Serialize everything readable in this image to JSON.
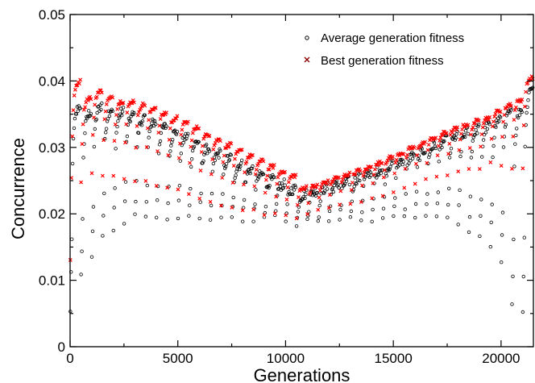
{
  "chart_data": {
    "type": "scatter",
    "title": "",
    "xlabel": "Generations",
    "ylabel": "Concurrence",
    "xlim": [
      0,
      21500
    ],
    "ylim": [
      0,
      0.05
    ],
    "x_ticks": [
      0,
      5000,
      10000,
      15000,
      20000
    ],
    "x_tick_labels": [
      "0",
      "5000",
      "10000",
      "15000",
      "20000"
    ],
    "y_ticks": [
      0,
      0.01,
      0.02,
      0.03,
      0.04,
      0.05
    ],
    "y_tick_labels": [
      "0",
      "0.01",
      "0.02",
      "0.03",
      "0.04",
      "0.05"
    ],
    "grid": false,
    "legend_position": "top-right",
    "restart_period": 500,
    "series": [
      {
        "name": "Average generation fitness",
        "marker": "open-circle",
        "color": "#000000",
        "segment_start_x": [
          0,
          500,
          1000,
          1500,
          2000,
          2500,
          3000,
          3500,
          4000,
          4500,
          5000,
          5500,
          6000,
          6500,
          7000,
          7500,
          8000,
          8500,
          9000,
          9500,
          10000,
          10500,
          11000,
          11500,
          12000,
          12500,
          13000,
          13500,
          14000,
          14500,
          15000,
          15500,
          16000,
          16500,
          17000,
          17500,
          18000,
          18500,
          19000,
          19500,
          20000,
          20500,
          21000
        ],
        "segment_min": [
          0.005,
          0.01,
          0.013,
          0.016,
          0.017,
          0.0185,
          0.019,
          0.019,
          0.019,
          0.019,
          0.019,
          0.019,
          0.019,
          0.0188,
          0.0188,
          0.0188,
          0.0188,
          0.0188,
          0.0188,
          0.0188,
          0.0188,
          0.018,
          0.0185,
          0.0185,
          0.0188,
          0.0188,
          0.0188,
          0.0188,
          0.0188,
          0.0188,
          0.0188,
          0.0188,
          0.0188,
          0.0188,
          0.0188,
          0.0185,
          0.018,
          0.0165,
          0.016,
          0.0145,
          0.0125,
          0.0055,
          0.0045
        ],
        "segment_max": [
          0.0365,
          0.0355,
          0.0365,
          0.036,
          0.0355,
          0.035,
          0.0345,
          0.034,
          0.0333,
          0.0325,
          0.0318,
          0.031,
          0.03,
          0.0292,
          0.0285,
          0.0275,
          0.0268,
          0.026,
          0.0252,
          0.0245,
          0.0238,
          0.023,
          0.0235,
          0.024,
          0.0245,
          0.025,
          0.0255,
          0.0262,
          0.0268,
          0.0275,
          0.0282,
          0.029,
          0.0297,
          0.0305,
          0.0312,
          0.0318,
          0.0325,
          0.033,
          0.0335,
          0.0345,
          0.0355,
          0.036,
          0.0395
        ]
      },
      {
        "name": "Best generation fitness",
        "marker": "x",
        "color": "#ff0000",
        "segment_start_x": [
          0,
          500,
          1000,
          1500,
          2000,
          2500,
          3000,
          3500,
          4000,
          4500,
          5000,
          5500,
          6000,
          6500,
          7000,
          7500,
          8000,
          8500,
          9000,
          9500,
          10000,
          10500,
          11000,
          11500,
          12000,
          12500,
          13000,
          13500,
          14000,
          14500,
          15000,
          15500,
          16000,
          16500,
          17000,
          17500,
          18000,
          18500,
          19000,
          19500,
          20000,
          20500,
          21000
        ],
        "segment_min": [
          0.013,
          0.025,
          0.026,
          0.026,
          0.026,
          0.0255,
          0.025,
          0.025,
          0.0245,
          0.024,
          0.0235,
          0.023,
          0.0225,
          0.022,
          0.0215,
          0.021,
          0.0208,
          0.0205,
          0.02,
          0.0198,
          0.0195,
          0.0192,
          0.02,
          0.0205,
          0.021,
          0.0212,
          0.0215,
          0.022,
          0.0225,
          0.023,
          0.0235,
          0.024,
          0.0245,
          0.025,
          0.0255,
          0.026,
          0.0262,
          0.0265,
          0.027,
          0.0275,
          0.0275,
          0.027,
          0.027
        ],
        "segment_max": [
          0.04,
          0.0375,
          0.0385,
          0.0375,
          0.037,
          0.037,
          0.0365,
          0.036,
          0.0352,
          0.0345,
          0.0338,
          0.033,
          0.032,
          0.0312,
          0.0305,
          0.0295,
          0.0288,
          0.028,
          0.0272,
          0.0265,
          0.0258,
          0.024,
          0.0242,
          0.0248,
          0.0255,
          0.026,
          0.0265,
          0.027,
          0.0277,
          0.0285,
          0.0292,
          0.03,
          0.0307,
          0.0315,
          0.0322,
          0.0328,
          0.0335,
          0.034,
          0.0345,
          0.0355,
          0.0365,
          0.0372,
          0.0405
        ]
      }
    ]
  }
}
